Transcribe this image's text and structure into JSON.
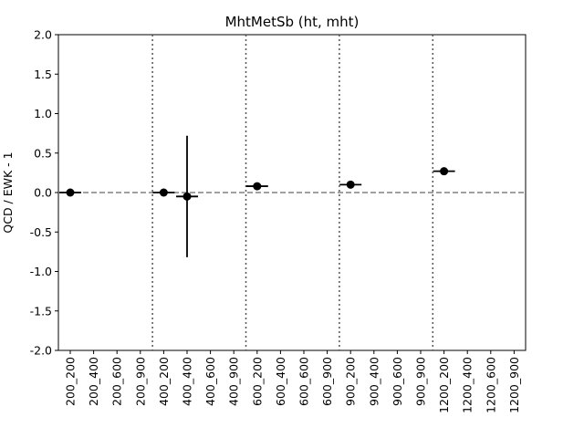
{
  "chart_data": {
    "type": "scatter",
    "title": "MhtMetSb (ht, mht)",
    "xlabel": "",
    "ylabel": "QCD / EWK - 1",
    "ylim": [
      -2.0,
      2.0
    ],
    "yticks": [
      "-2.0",
      "-1.5",
      "-1.0",
      "-0.5",
      "0.0",
      "0.5",
      "1.0",
      "1.5",
      "2.0"
    ],
    "categories": [
      "200_200",
      "200_400",
      "200_600",
      "200_900",
      "400_200",
      "400_400",
      "400_600",
      "400_900",
      "600_200",
      "600_400",
      "600_600",
      "600_900",
      "900_200",
      "900_400",
      "900_600",
      "900_900",
      "1200_200",
      "1200_400",
      "1200_600",
      "1200_900"
    ],
    "points": [
      {
        "category": "200_200",
        "y": 0.0,
        "yerr": 0.0
      },
      {
        "category": "400_200",
        "y": 0.0,
        "yerr": 0.0
      },
      {
        "category": "400_400",
        "y": -0.05,
        "yerr": 0.77
      },
      {
        "category": "600_200",
        "y": 0.08,
        "yerr": 0.0
      },
      {
        "category": "900_200",
        "y": 0.1,
        "yerr": 0.0
      },
      {
        "category": "1200_200",
        "y": 0.27,
        "yerr": 0.0
      }
    ],
    "reference_line": {
      "y": 0.0,
      "style": "dashed",
      "color": "#808080"
    },
    "group_separators_after": [
      "200_900",
      "400_900",
      "600_900",
      "900_900"
    ],
    "grid": false,
    "legend": "none",
    "marker_color": "#000000"
  }
}
